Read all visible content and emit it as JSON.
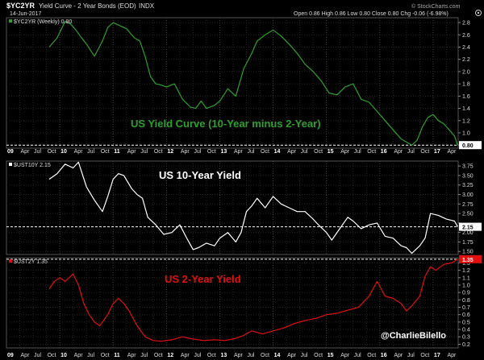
{
  "header": {
    "symbol": "$YC2YR",
    "title": "Yield Curve - 2 Year Bonds (EOD)",
    "exchange": "INDX",
    "date": "14-Jun-2017",
    "watermark": "© StockCharts.com",
    "quote": "Open 0.86  High 0.86  Low 0.80  Close 0.80  Chg -0.06 (-6.98%)"
  },
  "credit": "@CharlieBilello",
  "chart_data": [
    {
      "type": "line",
      "legend": "$YC2YR (Weekly) 0.80",
      "annotation": "US Yield Curve (10-Year minus 2-Year)",
      "color": "#2ea02e",
      "last_value_label": "0.80",
      "reference_line": 0.8,
      "ylim": [
        0.75,
        2.88
      ],
      "yticks": [
        0.8,
        1.0,
        1.2,
        1.4,
        1.6,
        1.8,
        2.0,
        2.2,
        2.4,
        2.6,
        2.8
      ],
      "ytick_labels": [
        "",
        "1.0",
        "1.2",
        "1.4",
        "1.6",
        "1.8",
        "2.0",
        "2.2",
        "2.4",
        "2.6",
        "2.8"
      ],
      "xlim": [
        2009.8,
        2017.47
      ],
      "x": [
        2009.8,
        2009.95,
        2010.1,
        2010.2,
        2010.3,
        2010.4,
        2010.5,
        2010.65,
        2010.8,
        2010.9,
        2011.0,
        2011.1,
        2011.25,
        2011.4,
        2011.5,
        2011.6,
        2011.7,
        2011.8,
        2011.9,
        2012.0,
        2012.15,
        2012.3,
        2012.45,
        2012.55,
        2012.65,
        2012.75,
        2012.9,
        2013.0,
        2013.15,
        2013.3,
        2013.45,
        2013.6,
        2013.7,
        2013.85,
        2014.0,
        2014.15,
        2014.3,
        2014.45,
        2014.6,
        2014.75,
        2014.9,
        2015.05,
        2015.2,
        2015.35,
        2015.5,
        2015.65,
        2015.8,
        2015.95,
        2016.1,
        2016.25,
        2016.4,
        2016.5,
        2016.6,
        2016.7,
        2016.8,
        2016.9,
        2017.0,
        2017.1,
        2017.2,
        2017.3,
        2017.4,
        2017.46
      ],
      "y": [
        2.4,
        2.55,
        2.82,
        2.78,
        2.68,
        2.56,
        2.45,
        2.25,
        2.5,
        2.72,
        2.8,
        2.76,
        2.7,
        2.55,
        2.5,
        2.25,
        1.92,
        1.8,
        1.78,
        1.75,
        1.8,
        1.55,
        1.42,
        1.4,
        1.52,
        1.4,
        1.45,
        1.52,
        1.72,
        1.6,
        2.05,
        2.3,
        2.5,
        2.6,
        2.68,
        2.58,
        2.45,
        2.3,
        2.12,
        2.0,
        1.85,
        1.65,
        1.62,
        1.75,
        1.8,
        1.55,
        1.5,
        1.35,
        1.2,
        1.05,
        0.9,
        0.85,
        0.8,
        0.88,
        1.1,
        1.25,
        1.3,
        1.2,
        1.15,
        1.05,
        0.95,
        0.8
      ]
    },
    {
      "type": "line",
      "legend": "$UST10Y 2.15",
      "annotation": "US 10-Year Yield",
      "color": "#ffffff",
      "last_value_label": "2.15",
      "reference_line": 2.15,
      "ylim": [
        1.42,
        3.88
      ],
      "yticks": [
        1.5,
        1.75,
        2.0,
        2.25,
        2.5,
        2.75,
        3.0,
        3.25,
        3.5,
        3.75
      ],
      "ytick_labels": [
        "1.50",
        "1.75",
        "2.00",
        "",
        "2.50",
        "2.75",
        "3.00",
        "3.25",
        "3.50",
        "3.75"
      ],
      "xlim": [
        2009.8,
        2017.47
      ],
      "x": [
        2009.8,
        2009.95,
        2010.1,
        2010.25,
        2010.35,
        2010.5,
        2010.65,
        2010.8,
        2010.9,
        2011.0,
        2011.1,
        2011.2,
        2011.35,
        2011.45,
        2011.55,
        2011.65,
        2011.8,
        2011.95,
        2012.1,
        2012.25,
        2012.4,
        2012.5,
        2012.6,
        2012.75,
        2012.9,
        2013.0,
        2013.15,
        2013.3,
        2013.4,
        2013.5,
        2013.6,
        2013.7,
        2013.85,
        2014.0,
        2014.15,
        2014.3,
        2014.45,
        2014.6,
        2014.75,
        2014.85,
        2015.0,
        2015.1,
        2015.25,
        2015.4,
        2015.5,
        2015.65,
        2015.8,
        2015.95,
        2016.1,
        2016.25,
        2016.4,
        2016.5,
        2016.6,
        2016.75,
        2016.85,
        2016.95,
        2017.1,
        2017.25,
        2017.4,
        2017.46
      ],
      "y": [
        3.4,
        3.55,
        3.8,
        3.7,
        3.85,
        3.2,
        2.85,
        2.55,
        2.95,
        3.4,
        3.55,
        3.5,
        3.15,
        3.0,
        2.9,
        2.4,
        2.2,
        1.95,
        2.0,
        2.2,
        1.8,
        1.55,
        1.6,
        1.72,
        1.65,
        1.85,
        2.0,
        1.75,
        2.0,
        2.55,
        2.7,
        2.9,
        2.65,
        2.95,
        2.75,
        2.65,
        2.55,
        2.55,
        2.35,
        2.2,
        2.0,
        1.8,
        2.1,
        2.4,
        2.3,
        2.1,
        2.2,
        2.25,
        1.9,
        1.85,
        1.65,
        1.6,
        1.45,
        1.65,
        1.85,
        2.5,
        2.45,
        2.35,
        2.3,
        2.15
      ]
    },
    {
      "type": "line",
      "legend": "$UST2Y 1.35",
      "annotation": "US 2-Year Yield",
      "color": "#e01010",
      "last_value_label": "1.35",
      "reference_line": 1.35,
      "ylim": [
        0.15,
        1.37
      ],
      "yticks": [
        0.2,
        0.3,
        0.4,
        0.5,
        0.6,
        0.7,
        0.8,
        0.9,
        1.0,
        1.1,
        1.2,
        1.3
      ],
      "ytick_labels": [
        "0.2",
        "0.3",
        "0.4",
        "0.5",
        "0.6",
        "0.7",
        "0.8",
        "0.9",
        "1.0",
        "1.1",
        "1.2",
        "1.3"
      ],
      "xlim": [
        2009.8,
        2017.47
      ],
      "x": [
        2009.8,
        2009.9,
        2010.0,
        2010.1,
        2010.25,
        2010.35,
        2010.45,
        2010.55,
        2010.65,
        2010.75,
        2010.9,
        2011.0,
        2011.1,
        2011.2,
        2011.3,
        2011.45,
        2011.6,
        2011.75,
        2011.9,
        2012.1,
        2012.3,
        2012.5,
        2012.7,
        2012.9,
        2013.1,
        2013.3,
        2013.45,
        2013.6,
        2013.8,
        2014.0,
        2014.2,
        2014.4,
        2014.6,
        2014.8,
        2015.0,
        2015.2,
        2015.4,
        2015.6,
        2015.8,
        2015.95,
        2016.1,
        2016.25,
        2016.4,
        2016.5,
        2016.6,
        2016.75,
        2016.85,
        2016.95,
        2017.05,
        2017.2,
        2017.35,
        2017.46
      ],
      "y": [
        0.95,
        1.05,
        1.1,
        1.05,
        1.15,
        1.0,
        0.75,
        0.6,
        0.5,
        0.45,
        0.6,
        0.75,
        0.82,
        0.75,
        0.65,
        0.45,
        0.3,
        0.25,
        0.24,
        0.26,
        0.3,
        0.27,
        0.25,
        0.26,
        0.25,
        0.28,
        0.32,
        0.38,
        0.34,
        0.38,
        0.42,
        0.48,
        0.52,
        0.55,
        0.6,
        0.62,
        0.66,
        0.7,
        0.85,
        1.05,
        0.85,
        0.82,
        0.75,
        0.65,
        0.72,
        0.85,
        1.12,
        1.25,
        1.2,
        1.28,
        1.3,
        1.35
      ]
    }
  ],
  "x_axis": {
    "ticks": [
      {
        "t": 2009.0,
        "label": "09",
        "year": true
      },
      {
        "t": 2009.25,
        "label": "Apr"
      },
      {
        "t": 2009.5,
        "label": "Jul"
      },
      {
        "t": 2009.75,
        "label": "Oct"
      },
      {
        "t": 2010.0,
        "label": "10",
        "year": true
      },
      {
        "t": 2010.25,
        "label": "Apr"
      },
      {
        "t": 2010.5,
        "label": "Jul"
      },
      {
        "t": 2010.75,
        "label": "Oct"
      },
      {
        "t": 2011.0,
        "label": "11",
        "year": true
      },
      {
        "t": 2011.25,
        "label": "Apr"
      },
      {
        "t": 2011.5,
        "label": "Jul"
      },
      {
        "t": 2011.75,
        "label": "Oct"
      },
      {
        "t": 2012.0,
        "label": "12",
        "year": true
      },
      {
        "t": 2012.25,
        "label": "Apr"
      },
      {
        "t": 2012.5,
        "label": "Jul"
      },
      {
        "t": 2012.75,
        "label": "Oct"
      },
      {
        "t": 2013.0,
        "label": "13",
        "year": true
      },
      {
        "t": 2013.25,
        "label": "Apr"
      },
      {
        "t": 2013.5,
        "label": "Jul"
      },
      {
        "t": 2013.75,
        "label": "Oct"
      },
      {
        "t": 2014.0,
        "label": "14",
        "year": true
      },
      {
        "t": 2014.25,
        "label": "Apr"
      },
      {
        "t": 2014.5,
        "label": "Jul"
      },
      {
        "t": 2014.75,
        "label": "Oct"
      },
      {
        "t": 2015.0,
        "label": "15",
        "year": true
      },
      {
        "t": 2015.25,
        "label": "Apr"
      },
      {
        "t": 2015.5,
        "label": "Jul"
      },
      {
        "t": 2015.75,
        "label": "Oct"
      },
      {
        "t": 2016.0,
        "label": "16",
        "year": true
      },
      {
        "t": 2016.25,
        "label": "Apr"
      },
      {
        "t": 2016.5,
        "label": "Jul"
      },
      {
        "t": 2016.75,
        "label": "Oct"
      },
      {
        "t": 2017.0,
        "label": "17",
        "year": true
      },
      {
        "t": 2017.25,
        "label": "Apr"
      }
    ]
  }
}
